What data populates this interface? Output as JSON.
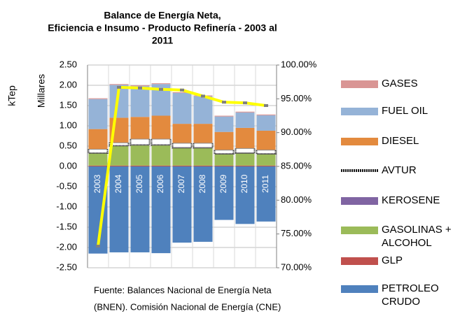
{
  "chart_data": {
    "type": "stacked_bar_line",
    "title": [
      "Balance de Energía Neta,",
      "Eficiencia e Insumo - Producto Refinería - 2003 al",
      "2011"
    ],
    "y_labels": [
      "kTep",
      "Millares"
    ],
    "source": [
      "Fuente: Balances Nacional de Energía Neta",
      "(BNEN). Comisión Nacional de Energía (CNE)"
    ],
    "categories": [
      "2003",
      "2004",
      "2005",
      "2006",
      "2007",
      "2008",
      "2009",
      "2010",
      "2011"
    ],
    "series": [
      {
        "name": "PETROLEO CRUDO",
        "color": "#4f81bd",
        "values": [
          -2.15,
          -2.12,
          -2.12,
          -2.14,
          -1.88,
          -1.86,
          -1.32,
          -1.42,
          -1.36
        ]
      },
      {
        "name": "GLP",
        "color": "#c0504d",
        "values": [
          0.02,
          0.02,
          0.02,
          0.02,
          0.02,
          0.02,
          0.02,
          0.02,
          0.02
        ]
      },
      {
        "name": "GASOLINAS + ALCOHOL",
        "color": "#9bbb59",
        "values": [
          0.3,
          0.48,
          0.5,
          0.5,
          0.43,
          0.43,
          0.28,
          0.3,
          0.28
        ]
      },
      {
        "name": "KEROSENE",
        "color": "#8064a2",
        "values": [
          0.01,
          0.01,
          0.01,
          0.01,
          0.01,
          0.01,
          0.01,
          0.01,
          0.01
        ]
      },
      {
        "name": "AVTUR",
        "color": "#1a1a1a",
        "values": [
          0.1,
          0.08,
          0.15,
          0.15,
          0.12,
          0.12,
          0.1,
          0.12,
          0.1
        ]
      },
      {
        "name": "DIESEL",
        "color": "#e38a3e",
        "values": [
          0.49,
          0.61,
          0.54,
          0.57,
          0.47,
          0.47,
          0.44,
          0.5,
          0.47
        ]
      },
      {
        "name": "FUEL OIL",
        "color": "#95b3d7",
        "values": [
          0.74,
          0.81,
          0.76,
          0.78,
          0.76,
          0.68,
          0.38,
          0.38,
          0.38
        ]
      },
      {
        "name": "GASES",
        "color": "#d99594",
        "values": [
          0.02,
          0.02,
          0.02,
          0.02,
          0.02,
          0.02,
          0.02,
          0.02,
          0.02
        ]
      }
    ],
    "legend_order": [
      7,
      6,
      5,
      4,
      3,
      2,
      1,
      0
    ],
    "line": {
      "axis": "y2",
      "color": "#ffff00",
      "values": [
        73.2,
        96.7,
        96.6,
        96.4,
        96.3,
        95.4,
        94.5,
        94.4,
        94.0
      ]
    },
    "ylim": [
      -2.5,
      2.5
    ],
    "yticks": [
      {
        "value": -2.5,
        "label": "-2.50"
      },
      {
        "value": -2,
        "label": "-2.00"
      },
      {
        "value": -1.5,
        "label": "-1.50"
      },
      {
        "value": -1,
        "label": "-1.00"
      },
      {
        "value": -0.5,
        "label": "-0.50"
      },
      {
        "value": 0,
        "label": "0.00"
      },
      {
        "value": 0.5,
        "label": "0.50"
      },
      {
        "value": 1,
        "label": "1.00"
      },
      {
        "value": 1.5,
        "label": "1.50"
      },
      {
        "value": 2,
        "label": "2.00"
      },
      {
        "value": 2.5,
        "label": "2.50"
      }
    ],
    "y2lim": [
      70,
      100
    ],
    "y2ticks": [
      {
        "value": 70,
        "label": "70.00%"
      },
      {
        "value": 75,
        "label": "75.00%"
      },
      {
        "value": 80,
        "label": "80.00%"
      },
      {
        "value": 85,
        "label": "85.00%"
      },
      {
        "value": 90,
        "label": "90.00%"
      },
      {
        "value": 95,
        "label": "95.00%"
      },
      {
        "value": 100,
        "label": "100.00%"
      }
    ],
    "grid": true
  }
}
